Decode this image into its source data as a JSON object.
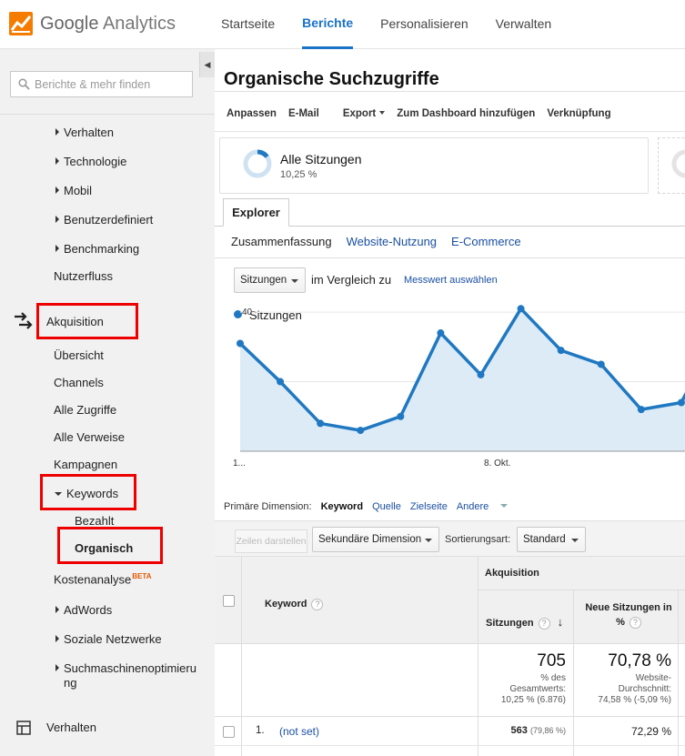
{
  "app": {
    "logo_google": "Google",
    "logo_product": "Analytics",
    "brand_color": "#f57c00"
  },
  "topnav": [
    {
      "label": "Startseite",
      "active": false
    },
    {
      "label": "Berichte",
      "active": true
    },
    {
      "label": "Personalisieren",
      "active": false
    },
    {
      "label": "Verwalten",
      "active": false
    }
  ],
  "sidebar": {
    "search_placeholder": "Berichte & mehr finden",
    "items": {
      "verhalten_sub": "Verhalten",
      "technologie": "Technologie",
      "mobil": "Mobil",
      "benutzerdefiniert": "Benutzerdefiniert",
      "benchmarking": "Benchmarking",
      "nutzerfluss": "Nutzerfluss",
      "akquisition": "Akquisition",
      "uebersicht": "Übersicht",
      "channels": "Channels",
      "alle_zugriffe": "Alle Zugriffe",
      "alle_verweise": "Alle Verweise",
      "kampagnen": "Kampagnen",
      "keywords": "Keywords",
      "bezahlt": "Bezahlt",
      "organisch": "Organisch",
      "kostenanalyse": "Kostenanalyse",
      "kostenanalyse_badge": "BETA",
      "adwords": "AdWords",
      "soziale_netzwerke": "Soziale Netzwerke",
      "seo_line1": "Suchmaschinenoptimieru",
      "seo_line2": "ng",
      "verhalten_main": "Verhalten"
    },
    "highlight_color": "#e00000"
  },
  "main": {
    "title": "Organische Suchzugriffe",
    "actions": {
      "anpassen": "Anpassen",
      "email": "E-Mail",
      "export": "Export",
      "dashboard": "Zum Dashboard hinzufügen",
      "verknuepfung": "Verknüpfung"
    },
    "segment": {
      "name": "Alle Sitzungen",
      "percent": "10,25 %"
    },
    "tab_explorer": "Explorer",
    "subtabs": {
      "zusammenfassung": "Zusammenfassung",
      "website_nutzung": "Website-Nutzung",
      "ecommerce": "E-Commerce"
    },
    "metric_select": "Sitzungen",
    "vergleich_label": "im Vergleich zu",
    "messwert_link": "Messwert auswählen",
    "dimension": {
      "label": "Primäre Dimension:",
      "current": "Keyword",
      "quelle": "Quelle",
      "zielseite": "Zielseite",
      "andere": "Andere"
    },
    "controls": {
      "zeilen_darstellen": "Zeilen darstellen",
      "sekundaere_dimension": "Sekundäre Dimension",
      "sortierungsart_label": "Sortierungsart:",
      "sortierungsart_value": "Standard"
    },
    "table": {
      "group_header": "Akquisition",
      "col_keyword": "Keyword",
      "col_sitzungen": "Sitzungen",
      "col_neue_line1": "Neue Sitzungen in",
      "col_neue_line2": "%",
      "help_glyph": "?",
      "sort_arrow": "↓",
      "total_sitzungen": "705",
      "total_sitzungen_sub1": "% des",
      "total_sitzungen_sub2": "Gesamtwerts:",
      "total_sitzungen_sub3": "10,25 % (6.876)",
      "total_neue": "70,78 %",
      "total_neue_sub1": "Website-",
      "total_neue_sub2": "Durchschnitt:",
      "total_neue_sub3": "74,58 % (-5,09 %)",
      "rows": [
        {
          "index": "1.",
          "keyword": "(not set)",
          "sitzungen": "563",
          "sitzungen_pct": "(79,86 %)",
          "neue": "72,29 %"
        }
      ]
    }
  },
  "chart_data": {
    "type": "area",
    "series": [
      {
        "name": "Sitzungen",
        "values": [
          31,
          20,
          8,
          6,
          10,
          34,
          22,
          41,
          29,
          25,
          12,
          14,
          36
        ]
      }
    ],
    "x_start_label": "1...",
    "x_mid_label": "8. Okt.",
    "yticks": [
      "40",
      "20"
    ],
    "ylim": [
      0,
      45
    ],
    "color": "#1f78c1",
    "fill": "#dcebf6"
  }
}
